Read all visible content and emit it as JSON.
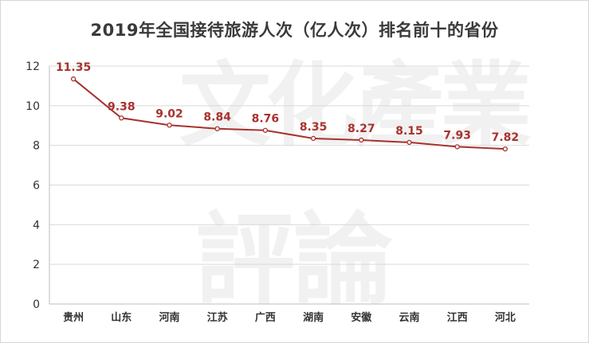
{
  "chart_data": {
    "type": "line",
    "title": "2019年全国接待旅游人次（亿人次）排名前十的省份",
    "categories": [
      "贵州",
      "山东",
      "河南",
      "江苏",
      "广西",
      "湖南",
      "安徽",
      "云南",
      "江西",
      "河北"
    ],
    "series": [
      {
        "values": [
          11.35,
          9.38,
          9.02,
          8.84,
          8.76,
          8.35,
          8.27,
          8.15,
          7.93,
          7.82
        ],
        "color": "#a8322d"
      }
    ],
    "ylim": [
      0,
      12
    ],
    "yticks": [
      0,
      2,
      4,
      6,
      8,
      10,
      12
    ],
    "grid": true,
    "xlabel": "",
    "ylabel": "",
    "data_labels": true,
    "watermark_text": "文化產業評論"
  }
}
